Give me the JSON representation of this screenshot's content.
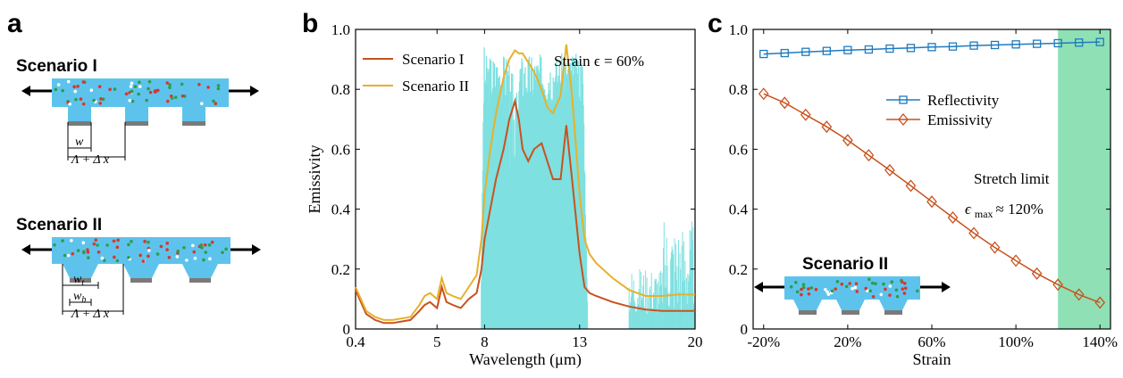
{
  "panels": {
    "a": {
      "letter": "a",
      "scenario1": {
        "title": "Scenario I",
        "dim_w": "w",
        "dim_pitch": "Λ + Δ x"
      },
      "scenario2": {
        "title": "Scenario II",
        "dim_wt": "w",
        "dim_wt_sub": "t",
        "dim_wb": "w",
        "dim_wb_sub": "b",
        "dim_pitch": "Λ + Δ x"
      }
    },
    "b": {
      "letter": "b",
      "annotation": "Strain ϵ = 60%"
    },
    "c": {
      "letter": "c",
      "inset_title": "Scenario II",
      "stretch_limit_line1": "Stretch limit",
      "stretch_limit_eps": "ϵ",
      "stretch_limit_sub": "max",
      "stretch_limit_value": "≈ 120%"
    }
  },
  "colors": {
    "scenario1": "#c8521e",
    "scenario2": "#e8b02a",
    "atm_window": "#7fe0e0",
    "reflectivity": "#1f7bbf",
    "emissivity": "#c8521e",
    "stretch_region": "#8fe0b5",
    "film": "#5ec3ec",
    "grating_base": "#7a7a7a"
  },
  "chart_data": [
    {
      "id": "b",
      "type": "line",
      "xlabel": "Wavelength (μm)",
      "ylabel": "Emissivity",
      "xlim": [
        0.4,
        20
      ],
      "ylim": [
        0,
        1.0
      ],
      "x_ticks": [
        0.4,
        5,
        8,
        13,
        20
      ],
      "x_tick_labels": [
        "0.4",
        "5",
        "8",
        "13",
        "20"
      ],
      "y_ticks": [
        0,
        0.2,
        0.4,
        0.6,
        0.8,
        1.0
      ],
      "y_tick_labels": [
        "0",
        "0.2",
        "0.4",
        "0.6",
        "0.8",
        "1.0"
      ],
      "legend_position": "top-left",
      "series": [
        {
          "name": "Scenario I",
          "x": [
            0.4,
            1.0,
            1.5,
            2.0,
            2.5,
            3.0,
            3.5,
            4.0,
            4.3,
            4.6,
            5.0,
            5.3,
            5.6,
            6.0,
            6.5,
            7.0,
            7.5,
            7.8,
            8.0,
            8.3,
            8.6,
            9.0,
            9.3,
            9.6,
            9.8,
            10.0,
            10.3,
            10.6,
            11.0,
            11.3,
            11.6,
            12.0,
            12.3,
            12.6,
            13.0,
            13.3,
            13.6,
            14.0,
            15.0,
            16.0,
            17.0,
            18.0,
            19.0,
            20.0
          ],
          "values": [
            0.13,
            0.05,
            0.03,
            0.02,
            0.02,
            0.025,
            0.03,
            0.06,
            0.08,
            0.09,
            0.07,
            0.14,
            0.09,
            0.08,
            0.07,
            0.1,
            0.12,
            0.2,
            0.3,
            0.4,
            0.5,
            0.6,
            0.7,
            0.76,
            0.7,
            0.6,
            0.56,
            0.6,
            0.62,
            0.56,
            0.5,
            0.5,
            0.68,
            0.5,
            0.25,
            0.14,
            0.12,
            0.11,
            0.09,
            0.075,
            0.065,
            0.06,
            0.06,
            0.06
          ]
        },
        {
          "name": "Scenario II",
          "x": [
            0.4,
            1.0,
            1.5,
            2.0,
            2.5,
            3.0,
            3.5,
            4.0,
            4.3,
            4.6,
            5.0,
            5.3,
            5.6,
            6.0,
            6.5,
            7.0,
            7.5,
            7.8,
            8.0,
            8.3,
            8.6,
            9.0,
            9.3,
            9.6,
            9.8,
            10.0,
            10.3,
            10.6,
            11.0,
            11.3,
            11.6,
            12.0,
            12.3,
            12.6,
            13.0,
            13.3,
            13.6,
            14.0,
            15.0,
            16.0,
            17.0,
            18.0,
            19.0,
            20.0
          ],
          "values": [
            0.14,
            0.06,
            0.04,
            0.03,
            0.03,
            0.035,
            0.04,
            0.08,
            0.11,
            0.12,
            0.1,
            0.17,
            0.12,
            0.11,
            0.1,
            0.14,
            0.18,
            0.3,
            0.45,
            0.6,
            0.72,
            0.84,
            0.9,
            0.93,
            0.92,
            0.92,
            0.89,
            0.86,
            0.8,
            0.74,
            0.72,
            0.78,
            0.95,
            0.78,
            0.45,
            0.3,
            0.25,
            0.22,
            0.17,
            0.13,
            0.11,
            0.11,
            0.115,
            0.115
          ]
        }
      ]
    },
    {
      "id": "c",
      "type": "line",
      "xlabel": "Strain",
      "ylabel": "",
      "xlim": [
        -25,
        145
      ],
      "ylim": [
        0,
        1.0
      ],
      "x_ticks": [
        -20,
        20,
        60,
        100,
        140
      ],
      "x_tick_labels": [
        "-20%",
        "20%",
        "60%",
        "100%",
        "140%"
      ],
      "y_ticks": [
        0,
        0.2,
        0.4,
        0.6,
        0.8,
        1.0
      ],
      "y_tick_labels": [
        "0",
        "0.2",
        "0.4",
        "0.6",
        "0.8",
        "1.0"
      ],
      "legend_position": "upper-middle",
      "highlight_region": [
        120,
        145
      ],
      "series": [
        {
          "name": "Reflectivity",
          "marker": "square",
          "x": [
            -20,
            -10,
            0,
            10,
            20,
            30,
            40,
            50,
            60,
            70,
            80,
            90,
            100,
            110,
            120,
            130,
            140
          ],
          "values": [
            0.918,
            0.921,
            0.925,
            0.928,
            0.931,
            0.933,
            0.936,
            0.938,
            0.941,
            0.943,
            0.946,
            0.948,
            0.95,
            0.952,
            0.954,
            0.956,
            0.958
          ]
        },
        {
          "name": "Emissivity",
          "marker": "diamond",
          "x": [
            -20,
            -10,
            0,
            10,
            20,
            30,
            40,
            50,
            60,
            70,
            80,
            90,
            100,
            110,
            120,
            130,
            140
          ],
          "values": [
            0.785,
            0.755,
            0.715,
            0.675,
            0.63,
            0.58,
            0.53,
            0.478,
            0.425,
            0.372,
            0.32,
            0.272,
            0.228,
            0.185,
            0.148,
            0.115,
            0.088
          ]
        }
      ]
    }
  ]
}
